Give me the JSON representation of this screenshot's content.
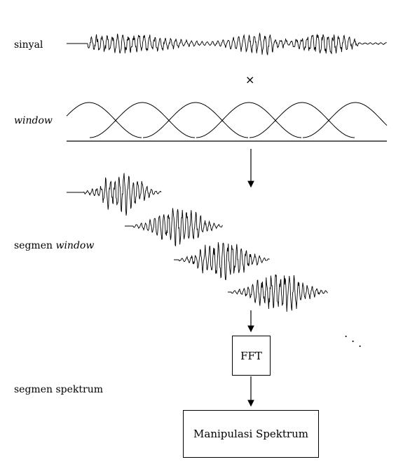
{
  "labels": {
    "signal": "sinyal",
    "window": "window",
    "windowed_segments_prefix": "segmen ",
    "windowed_segments_italic": "window",
    "spectrum_segments": "segmen spektrum"
  },
  "operators": {
    "multiply": "×",
    "continuation": "· · ·"
  },
  "blocks": {
    "fft": "FFT",
    "manipulation": "Manipulasi Spektrum"
  }
}
